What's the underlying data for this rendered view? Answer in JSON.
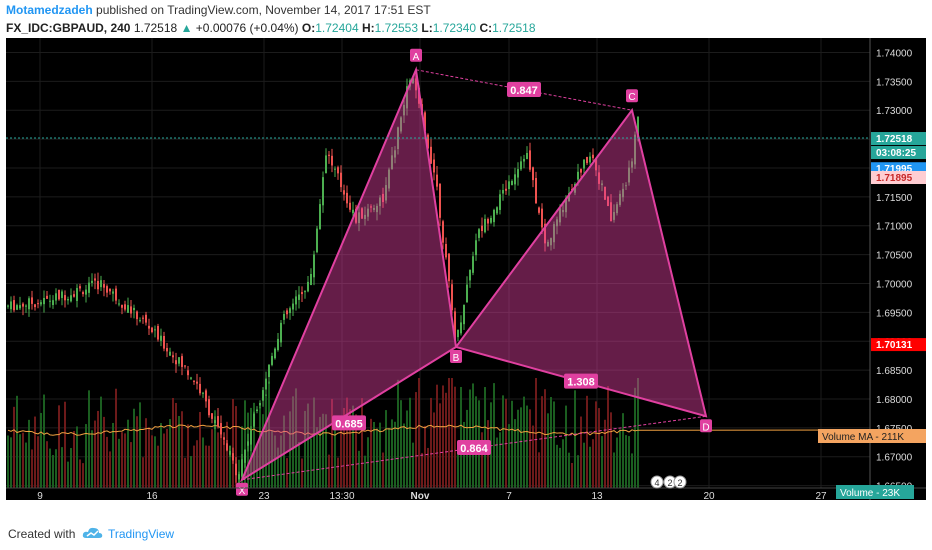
{
  "header": {
    "author": "Motamedzadeh",
    "published_text": " published on TradingView.com, November 14, 2017 17:51 EST"
  },
  "quote": {
    "symbol": "FX_IDC:GBPAUD, 240",
    "last": "1.72518",
    "arrow": "▲",
    "change": "+0.00076 (+0.04%)",
    "o_label": "O:",
    "o": "1.72404",
    "h_label": "H:",
    "h": "1.72553",
    "l_label": "L:",
    "l": "1.72340",
    "c_label": "C:",
    "c": "1.72518"
  },
  "footer": {
    "created_with": "Created with",
    "brand": "TradingView"
  },
  "colors": {
    "up": "#4caf50",
    "down": "#ef5350",
    "pattern": "#e040a0",
    "last_price": "#26a69a",
    "current_price_tag": "#ff0000"
  },
  "chart_data": {
    "type": "candlestick",
    "symbol": "GBPAUD",
    "timeframe": "240",
    "ylim": [
      1.6625,
      1.7425
    ],
    "y_ticks": [
      "1.74000",
      "1.73500",
      "1.73000",
      "1.72500",
      "1.72000",
      "1.71500",
      "1.71000",
      "1.70500",
      "1.70000",
      "1.69500",
      "1.69000",
      "1.68500",
      "1.68000",
      "1.67500",
      "1.67000",
      "1.66500"
    ],
    "x_ticks": [
      "9",
      "16",
      "23",
      "13:30",
      "Nov",
      "7",
      "13",
      "20",
      "27"
    ],
    "price_tags": [
      {
        "label": "1.72518",
        "role": "last"
      },
      {
        "label": "03:08:25",
        "role": "countdown"
      },
      {
        "label": "1.71995",
        "role": "bid"
      },
      {
        "label": "1.71895",
        "role": "ask"
      },
      {
        "label": "1.70131",
        "role": "current"
      }
    ],
    "pattern": {
      "points": [
        {
          "name": "X",
          "price": 1.666
        },
        {
          "name": "A",
          "price": 1.737
        },
        {
          "name": "B",
          "price": 1.689
        },
        {
          "name": "C",
          "price": 1.73
        },
        {
          "name": "D",
          "price": 1.677
        }
      ],
      "ratios": [
        "0.685",
        "0.847",
        "1.308",
        "0.864"
      ]
    },
    "volume": {
      "ma_label": "Volume MA",
      "ma_value": "211K",
      "label": "Volume",
      "value": "23K"
    },
    "events_badges": [
      "4",
      "2",
      "2"
    ]
  }
}
